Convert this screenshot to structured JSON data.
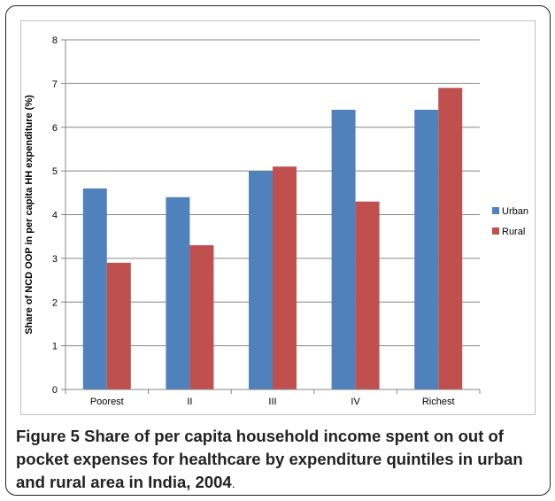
{
  "figure": {
    "label": "Figure 5",
    "caption": "Share of per capita household income spent on out of pocket expenses for healthcare by expenditure quintiles in urban and rural area in India, 2004",
    "caption_end": "."
  },
  "chart_data": {
    "type": "bar",
    "title": "",
    "xlabel": "",
    "ylabel": "Share of NCD OOP in per capita HH expenditure (%)",
    "categories": [
      "Poorest",
      "II",
      "III",
      "IV",
      "Richest"
    ],
    "series": [
      {
        "name": "Urban",
        "values": [
          4.6,
          4.4,
          5.0,
          6.4,
          6.4
        ],
        "color": "#4F81BD"
      },
      {
        "name": "Rural",
        "values": [
          2.9,
          3.3,
          5.1,
          4.3,
          6.9
        ],
        "color": "#C0504D"
      }
    ],
    "ylim": [
      0,
      8
    ],
    "yticks": [
      "0",
      "1",
      "2",
      "3",
      "4",
      "5",
      "6",
      "7",
      "8"
    ],
    "grid": true,
    "legend": "right"
  }
}
